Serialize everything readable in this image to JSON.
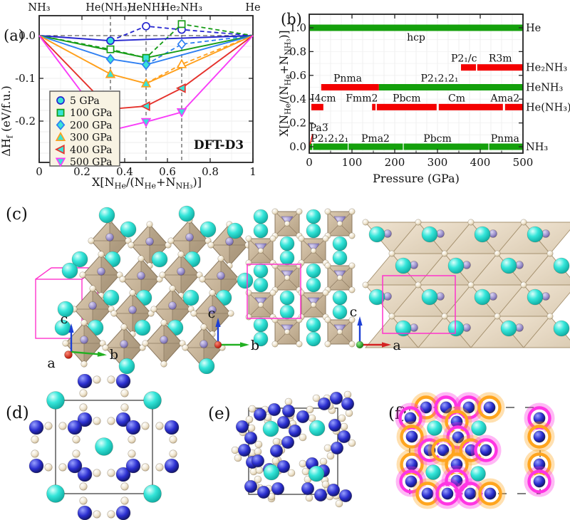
{
  "panel_labels": {
    "a": "(a)",
    "b": "(b)",
    "c": "(c)",
    "d": "(d)",
    "e": "(e)",
    "f": "(f)"
  },
  "chart_data": [
    {
      "id": "a",
      "type": "line",
      "title": "",
      "annotation": "DFT-D3",
      "xlabel_parts": [
        [
          "X[N",
          0
        ],
        [
          "He",
          1
        ],
        [
          "/(N",
          0
        ],
        [
          "He",
          1
        ],
        [
          "+N",
          0
        ],
        [
          "NH₃",
          1
        ],
        [
          ")]",
          0
        ]
      ],
      "ylabel_parts": [
        [
          "ΔH",
          0
        ],
        [
          "f",
          1
        ],
        [
          " (eV/f.u.)",
          0
        ]
      ],
      "xlim": [
        0,
        1
      ],
      "ylim": [
        -0.297,
        0.047
      ],
      "x_ticks": [
        {
          "v": 0,
          "label": "0"
        },
        {
          "v": 0.2,
          "label": "0.2"
        },
        {
          "v": 0.4,
          "label": "0.4"
        },
        {
          "v": 0.6,
          "label": "0.6"
        },
        {
          "v": 0.8,
          "label": "0.8"
        },
        {
          "v": 1,
          "label": "1"
        }
      ],
      "y_ticks": [
        {
          "v": 0,
          "label": "0.0"
        },
        {
          "v": -0.1,
          "label": "-0.1"
        },
        {
          "v": -0.2,
          "label": "-0.2"
        }
      ],
      "top_labels": [
        {
          "x": 0,
          "text": "NH₃"
        },
        {
          "x": 0.3333,
          "text": "He(NH₃)₂"
        },
        {
          "x": 0.5,
          "text": "HeNH₃"
        },
        {
          "x": 0.6667,
          "text": "He₂NH₃"
        },
        {
          "x": 1,
          "text": "He"
        }
      ],
      "guide_x": [
        0.3333,
        0.5,
        0.6667
      ],
      "marker_fill": "#38e3d6",
      "open_fill": "#ffffff",
      "series": [
        {
          "label": "5 GPa",
          "color": "#2525cf",
          "marker": "circle",
          "solid": [
            [
              0,
              0
            ],
            [
              0.3333,
              -0.012
            ],
            [
              1,
              0
            ]
          ],
          "dashed": [
            [
              0.3333,
              -0.012
            ],
            [
              0.5,
              0.022
            ],
            [
              0.6667,
              0.014
            ],
            [
              1,
              0
            ]
          ],
          "filled_points": [
            [
              0.3333,
              -0.012
            ]
          ],
          "open_points": [
            [
              0.5,
              0.022
            ],
            [
              0.6667,
              0.014
            ]
          ]
        },
        {
          "label": "100 GPa",
          "color": "#169c16",
          "marker": "square",
          "solid": [
            [
              0,
              0
            ],
            [
              0.5,
              -0.052
            ],
            [
              1,
              0
            ]
          ],
          "dashed": [
            [
              0,
              0
            ],
            [
              0.3333,
              -0.032
            ],
            [
              0.5,
              -0.052
            ],
            [
              0.6667,
              0.027
            ],
            [
              1,
              0
            ]
          ],
          "filled_points": [
            [
              0.5,
              -0.052
            ]
          ],
          "open_points": [
            [
              0.3333,
              -0.032
            ],
            [
              0.6667,
              0.027
            ]
          ]
        },
        {
          "label": "200 GPa",
          "color": "#2e7ff2",
          "marker": "diamond",
          "solid": [
            [
              0,
              0
            ],
            [
              0.3333,
              -0.055
            ],
            [
              0.5,
              -0.068
            ],
            [
              1,
              0
            ]
          ],
          "dashed": [
            [
              0.5,
              -0.068
            ],
            [
              0.6667,
              -0.02
            ],
            [
              1,
              0
            ]
          ],
          "filled_points": [
            [
              0.3333,
              -0.055
            ],
            [
              0.5,
              -0.068
            ]
          ],
          "open_points": [
            [
              0.6667,
              -0.02
            ]
          ]
        },
        {
          "label": "300 GPa",
          "color": "#ff9f1a",
          "marker": "triangle-up",
          "solid": [
            [
              0,
              0
            ],
            [
              0.3333,
              -0.09
            ],
            [
              0.5,
              -0.112
            ],
            [
              1,
              0
            ]
          ],
          "dashed": [
            [
              0.5,
              -0.112
            ],
            [
              0.6667,
              -0.067
            ],
            [
              1,
              0
            ]
          ],
          "filled_points": [
            [
              0.3333,
              -0.09
            ],
            [
              0.5,
              -0.112
            ]
          ],
          "open_points": [
            [
              0.6667,
              -0.067
            ]
          ]
        },
        {
          "label": "400 GPa",
          "color": "#e5312b",
          "marker": "triangle-left",
          "solid": [
            [
              0,
              0
            ],
            [
              0.3333,
              -0.172
            ],
            [
              0.5,
              -0.165
            ],
            [
              0.6667,
              -0.123
            ],
            [
              1,
              0
            ]
          ],
          "dashed": [],
          "filled_points": [
            [
              0.3333,
              -0.172
            ],
            [
              0.5,
              -0.165
            ],
            [
              0.6667,
              -0.123
            ]
          ],
          "open_points": []
        },
        {
          "label": "500 GPa",
          "color": "#f83df8",
          "marker": "triangle-down",
          "solid": [
            [
              0,
              0
            ],
            [
              0.3333,
              -0.222
            ],
            [
              0.5,
              -0.202
            ],
            [
              0.6667,
              -0.179
            ],
            [
              1,
              0
            ]
          ],
          "dashed": [],
          "filled_points": [
            [
              0.3333,
              -0.222
            ],
            [
              0.5,
              -0.202
            ],
            [
              0.6667,
              -0.179
            ]
          ],
          "open_points": []
        }
      ],
      "legend": {
        "items": [
          "5 GPa",
          "100 GPa",
          "200 GPa",
          "300 GPa",
          "400 GPa",
          "500 GPa"
        ]
      }
    },
    {
      "id": "b",
      "type": "phase_bars",
      "xlabel": "Pressure (GPa)",
      "ylabel_parts": [
        [
          "X[N",
          0
        ],
        [
          "He",
          1
        ],
        [
          "/(N",
          0
        ],
        [
          "He",
          1
        ],
        [
          "+N",
          0
        ],
        [
          "NH₃",
          1
        ],
        [
          ")]",
          0
        ]
      ],
      "xlim": [
        0,
        500
      ],
      "x_ticks": [
        0,
        100,
        200,
        300,
        400,
        500
      ],
      "y_ticks": [
        {
          "v": 0,
          "label": "0.0"
        },
        {
          "v": 0.2,
          "label": "0.2"
        },
        {
          "v": 0.4,
          "label": "0.4"
        },
        {
          "v": 0.6,
          "label": "0.6"
        },
        {
          "v": 0.8,
          "label": "0.8"
        },
        {
          "v": 1,
          "label": "1.0"
        }
      ],
      "colors": {
        "green": "#14a00c",
        "red": "#f40000",
        "leader": "#f40000"
      },
      "rows": [
        {
          "compound": "He",
          "y": 1.0,
          "segments": [
            {
              "phase": "hcp",
              "from": 0,
              "to": 500,
              "color": "green",
              "label_below": true,
              "label_x": 250
            }
          ]
        },
        {
          "compound": "He₂NH₃",
          "y": 0.6667,
          "segments": [
            {
              "phase": "P2₁/c",
              "from": 355,
              "to": 390,
              "color": "red",
              "label_x": 362
            },
            {
              "phase": "R3m",
              "from": 393,
              "to": 500,
              "color": "red",
              "label_x": 447
            }
          ]
        },
        {
          "compound": "HeNH₃",
          "y": 0.5,
          "segments": [
            {
              "phase": "Pnma",
              "from": 28,
              "to": 163,
              "color": "red",
              "label_x": 90
            },
            {
              "phase": "P2₁2₁2₁",
              "from": 163,
              "to": 500,
              "color": "green",
              "label_x": 305
            }
          ]
        },
        {
          "compound": "He(NH₃)₂",
          "y": 0.3333,
          "segments": [
            {
              "phase": "I4cm",
              "from": 5,
              "to": 33,
              "color": "red",
              "label_x": 33
            },
            {
              "phase": "Fmm2",
              "from": 147,
              "to": 155,
              "color": "red",
              "label_x": 123
            },
            {
              "phase": "Pbcm",
              "from": 158,
              "to": 298,
              "color": "red",
              "label_x": 228
            },
            {
              "phase": "Cm",
              "from": 303,
              "to": 453,
              "color": "red",
              "label_x": 345
            },
            {
              "phase": "Ama2",
              "from": 458,
              "to": 500,
              "color": "red",
              "label_x": 458
            }
          ]
        },
        {
          "compound": "NH₃",
          "y": 0.0,
          "segments": [
            {
              "phase": "Pa3̅",
              "from": 0,
              "to": 7,
              "color": "green",
              "special": "pa3"
            },
            {
              "phase": "P2₁2₁2₁",
              "from": 9,
              "to": 90,
              "color": "green",
              "special": "line2",
              "label_x": 48
            },
            {
              "phase": "Pma2",
              "from": 92,
              "to": 219,
              "color": "green",
              "special": "line2",
              "label_x": 155
            },
            {
              "phase": "Pbcm",
              "from": 221,
              "to": 419,
              "color": "green",
              "special": "line2",
              "label_x": 300
            },
            {
              "phase": "Pnma",
              "from": 421,
              "to": 500,
              "color": "green",
              "special": "line2",
              "label_x": 458
            }
          ]
        }
      ]
    }
  ],
  "structures": {
    "c": {
      "label": "(c)",
      "views": [
        {
          "name": "perspective-view",
          "axes": {
            "up": "c",
            "right": "b",
            "out": "a"
          }
        },
        {
          "name": "bc-projection",
          "axes": {
            "up": "c",
            "right": "b"
          }
        },
        {
          "name": "ac-projection",
          "axes": {
            "up": "c",
            "right": "a"
          }
        }
      ]
    },
    "d": {
      "label": "(d)"
    },
    "e": {
      "label": "(e)"
    },
    "f": {
      "label": "(f)"
    }
  },
  "colors": {
    "cyan_atom": "#21dfd3",
    "blue_atom": "#2b2fd0",
    "white_atom": "#efe5cf",
    "tan_polyhedron": "#cdb89c",
    "lavender_atom": "#9c92cd",
    "magenta_cell": "#ff33cc",
    "ring_orange": "#ffa51e",
    "ring_magenta": "#ff35e3"
  }
}
